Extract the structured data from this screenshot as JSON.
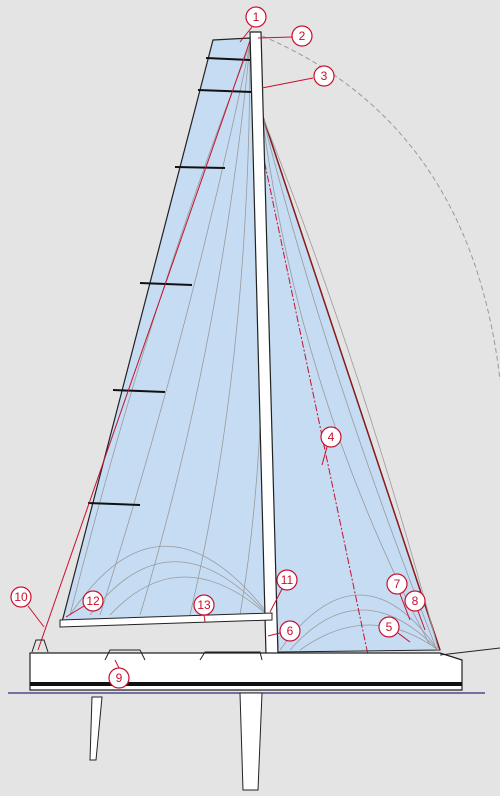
{
  "callouts": [
    {
      "label": "1"
    },
    {
      "label": "2"
    },
    {
      "label": "3"
    },
    {
      "label": "4"
    },
    {
      "label": "5"
    },
    {
      "label": "6"
    },
    {
      "label": "7"
    },
    {
      "label": "8"
    },
    {
      "label": "9"
    },
    {
      "label": "10"
    },
    {
      "label": "11"
    },
    {
      "label": "12"
    },
    {
      "label": "13"
    }
  ]
}
